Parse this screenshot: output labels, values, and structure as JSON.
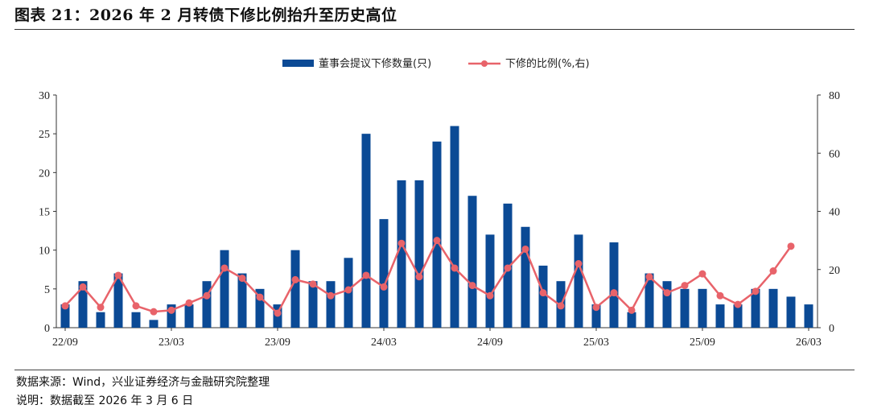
{
  "title": "图表 21：2026 年 2 月转债下修比例抬升至历史高位",
  "source": "数据来源：Wind，兴业证券经济与金融研究院整理",
  "remark": "说明：数据截至 2026 年 3 月 6 日",
  "colors": {
    "bar": "#0b4a95",
    "line": "#e8636a"
  },
  "chart_data": {
    "type": "bar+line",
    "periods": [
      "22/09",
      "22/10",
      "22/11",
      "22/12",
      "23/01",
      "23/02",
      "23/03",
      "23/04",
      "23/05",
      "23/06",
      "23/07",
      "23/08",
      "23/09",
      "23/10",
      "23/11",
      "23/12",
      "24/01",
      "24/02",
      "24/03",
      "24/04",
      "24/05",
      "24/06",
      "24/07",
      "24/08",
      "24/09",
      "24/10",
      "24/11",
      "24/12",
      "25/01",
      "25/02",
      "25/03",
      "25/04",
      "25/05",
      "25/06",
      "25/07",
      "25/08",
      "25/09",
      "25/10",
      "25/11",
      "25/12",
      "26/01",
      "26/02",
      "26/03"
    ],
    "tick_labels": [
      "22/09",
      "23/03",
      "23/09",
      "24/03",
      "24/09",
      "25/03",
      "25/09",
      "26/03"
    ],
    "tick_index": [
      0,
      6,
      12,
      18,
      24,
      30,
      36,
      42
    ],
    "series": [
      {
        "name": "董事会提议下修数量(只)",
        "type": "bar",
        "axis": "left",
        "values": [
          3,
          6,
          2,
          7,
          2,
          1,
          3,
          3,
          6,
          10,
          7,
          5,
          3,
          10,
          6,
          6,
          9,
          25,
          14,
          19,
          19,
          24,
          26,
          17,
          12,
          16,
          13,
          8,
          6,
          12,
          3,
          11,
          2,
          7,
          6,
          5,
          5,
          3,
          3,
          5,
          5,
          4,
          3
        ]
      },
      {
        "name": "下修的比例(%,右)",
        "type": "line",
        "axis": "right",
        "values": [
          7.5,
          14,
          7,
          18,
          7.5,
          5.5,
          6,
          8.5,
          11,
          20.5,
          17,
          10.5,
          5,
          16.5,
          15,
          11,
          13,
          18,
          14,
          29,
          17.5,
          30,
          20.5,
          14.5,
          11,
          20.5,
          27,
          12,
          7.5,
          22,
          7,
          12,
          6,
          17.5,
          12,
          14.5,
          18.5,
          11,
          8,
          12.5,
          19.5,
          28
        ]
      }
    ],
    "left_axis": {
      "min": 0,
      "max": 30,
      "ticks": [
        0,
        5,
        10,
        15,
        20,
        25,
        30
      ]
    },
    "right_axis": {
      "min": 0,
      "max": 80,
      "ticks": [
        0,
        20,
        40,
        60,
        80
      ]
    },
    "legend": [
      "董事会提议下修数量(只)",
      "下修的比例(%,右)"
    ],
    "legend_position": "top-center"
  }
}
